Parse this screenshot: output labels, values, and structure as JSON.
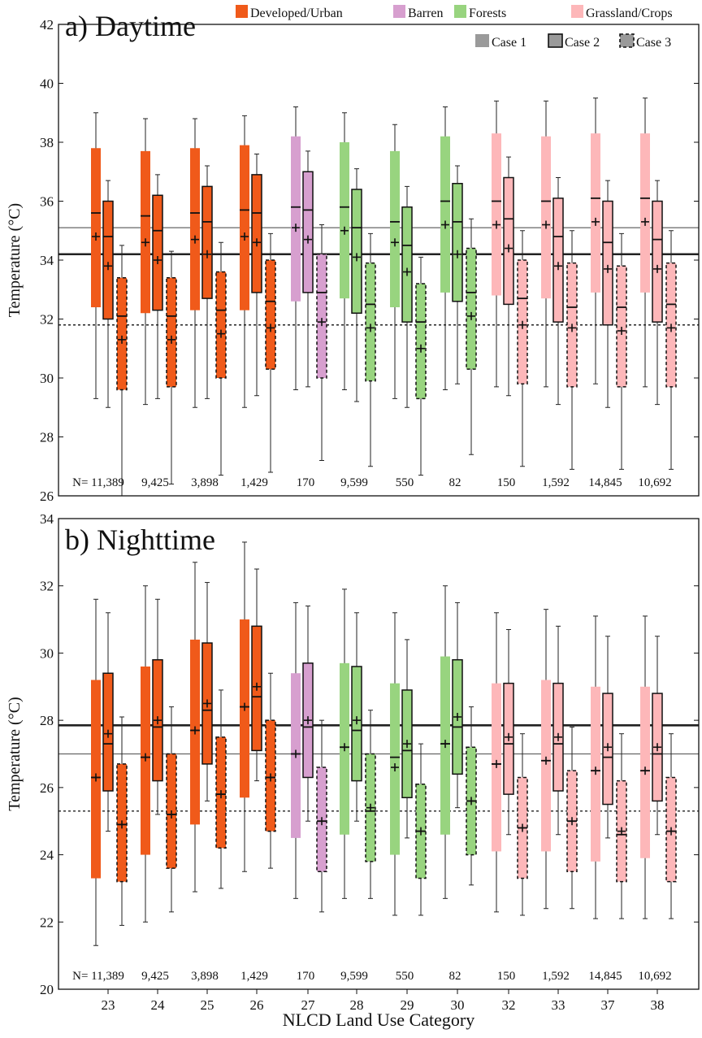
{
  "legend": {
    "categories": [
      {
        "label": "Developed/Urban",
        "color": "#f05a1a"
      },
      {
        "label": "Barren",
        "color": "#d79fcf"
      },
      {
        "label": "Forests",
        "color": "#98d47f"
      },
      {
        "label": "Grassland/Crops",
        "color": "#fdb7b9"
      }
    ],
    "cases": [
      {
        "label": "Case 1",
        "style": "filled-no-border"
      },
      {
        "label": "Case 2",
        "style": "solid-border"
      },
      {
        "label": "Case 3",
        "style": "dashed-border"
      }
    ]
  },
  "x_title": "NLCD Land Use Category",
  "chart_data": [
    {
      "type": "box",
      "title": "a) Daytime",
      "xlabel": "NLCD Land Use Category",
      "ylabel": "Temperature (°C)",
      "ylim": [
        26,
        42
      ],
      "yticks": [
        "26",
        "28",
        "30",
        "32",
        "34",
        "36",
        "38",
        "40",
        "42"
      ],
      "n_prefix": "N=",
      "groups": [
        {
          "category": "23",
          "class": "Developed/Urban",
          "n": "11,389",
          "case1": {
            "whisker_low": 29.3,
            "q1": 32.4,
            "median": 35.6,
            "q3": 37.8,
            "whisker_high": 39.0,
            "mean": 34.8
          },
          "case2": {
            "whisker_low": 29.0,
            "q1": 32.0,
            "median": 34.8,
            "q3": 36.0,
            "whisker_high": 36.7,
            "mean": 33.8
          },
          "case3": {
            "whisker_low": 26.0,
            "q1": 29.6,
            "median": 32.1,
            "q3": 33.4,
            "whisker_high": 34.5,
            "mean": 31.3
          }
        },
        {
          "category": "24",
          "class": "Developed/Urban",
          "n": "9,425",
          "case1": {
            "whisker_low": 29.1,
            "q1": 32.2,
            "median": 35.5,
            "q3": 37.7,
            "whisker_high": 38.8,
            "mean": 34.6
          },
          "case2": {
            "whisker_low": 29.3,
            "q1": 32.3,
            "median": 35.0,
            "q3": 36.2,
            "whisker_high": 36.9,
            "mean": 34.0
          },
          "case3": {
            "whisker_low": 26.4,
            "q1": 29.7,
            "median": 32.1,
            "q3": 33.4,
            "whisker_high": 34.3,
            "mean": 31.3
          }
        },
        {
          "category": "25",
          "class": "Developed/Urban",
          "n": "3,898",
          "case1": {
            "whisker_low": 29.0,
            "q1": 32.3,
            "median": 35.6,
            "q3": 37.8,
            "whisker_high": 38.8,
            "mean": 34.7
          },
          "case2": {
            "whisker_low": 29.3,
            "q1": 32.7,
            "median": 35.3,
            "q3": 36.5,
            "whisker_high": 37.2,
            "mean": 34.2
          },
          "case3": {
            "whisker_low": 26.7,
            "q1": 30.0,
            "median": 32.3,
            "q3": 33.6,
            "whisker_high": 34.6,
            "mean": 31.5
          }
        },
        {
          "category": "26",
          "class": "Developed/Urban",
          "n": "1,429",
          "case1": {
            "whisker_low": 29.0,
            "q1": 32.3,
            "median": 35.7,
            "q3": 37.9,
            "whisker_high": 38.9,
            "mean": 34.8
          },
          "case2": {
            "whisker_low": 29.4,
            "q1": 32.9,
            "median": 35.6,
            "q3": 36.9,
            "whisker_high": 37.6,
            "mean": 34.6
          },
          "case3": {
            "whisker_low": 26.8,
            "q1": 30.3,
            "median": 32.6,
            "q3": 34.0,
            "whisker_high": 34.9,
            "mean": 31.7
          }
        },
        {
          "category": "27",
          "class": "Barren",
          "n": "170",
          "case1": {
            "whisker_low": 29.6,
            "q1": 32.6,
            "median": 35.8,
            "q3": 38.2,
            "whisker_high": 39.2,
            "mean": 35.1
          },
          "case2": {
            "whisker_low": 29.7,
            "q1": 32.9,
            "median": 35.7,
            "q3": 37.0,
            "whisker_high": 37.7,
            "mean": 34.7
          },
          "case3": {
            "whisker_low": 27.2,
            "q1": 30.0,
            "median": 32.9,
            "q3": 34.2,
            "whisker_high": 35.2,
            "mean": 31.9
          }
        },
        {
          "category": "28",
          "class": "Forests",
          "n": "9,599",
          "case1": {
            "whisker_low": 29.6,
            "q1": 32.7,
            "median": 35.8,
            "q3": 38.0,
            "whisker_high": 39.0,
            "mean": 35.0
          },
          "case2": {
            "whisker_low": 29.2,
            "q1": 32.2,
            "median": 35.1,
            "q3": 36.4,
            "whisker_high": 37.1,
            "mean": 34.1
          },
          "case3": {
            "whisker_low": 27.0,
            "q1": 29.9,
            "median": 32.5,
            "q3": 33.9,
            "whisker_high": 34.9,
            "mean": 31.7
          }
        },
        {
          "category": "29",
          "class": "Forests",
          "n": "550",
          "case1": {
            "whisker_low": 29.3,
            "q1": 32.4,
            "median": 35.3,
            "q3": 37.7,
            "whisker_high": 38.6,
            "mean": 34.6
          },
          "case2": {
            "whisker_low": 29.0,
            "q1": 31.9,
            "median": 34.5,
            "q3": 35.8,
            "whisker_high": 36.5,
            "mean": 33.6
          },
          "case3": {
            "whisker_low": 26.7,
            "q1": 29.3,
            "median": 31.9,
            "q3": 33.2,
            "whisker_high": 34.1,
            "mean": 31.0
          }
        },
        {
          "category": "30",
          "class": "Forests",
          "n": "82",
          "case1": {
            "whisker_low": 29.6,
            "q1": 32.9,
            "median": 36.0,
            "q3": 38.2,
            "whisker_high": 39.2,
            "mean": 35.2
          },
          "case2": {
            "whisker_low": 29.8,
            "q1": 32.6,
            "median": 35.3,
            "q3": 36.6,
            "whisker_high": 37.2,
            "mean": 34.2
          },
          "case3": {
            "whisker_low": 27.4,
            "q1": 30.3,
            "median": 32.9,
            "q3": 34.4,
            "whisker_high": 35.4,
            "mean": 32.1
          }
        },
        {
          "category": "32",
          "class": "Grassland/Crops",
          "n": "150",
          "case1": {
            "whisker_low": 29.7,
            "q1": 32.8,
            "median": 36.0,
            "q3": 38.3,
            "whisker_high": 39.4,
            "mean": 35.2
          },
          "case2": {
            "whisker_low": 29.4,
            "q1": 32.5,
            "median": 35.4,
            "q3": 36.8,
            "whisker_high": 37.5,
            "mean": 34.4
          },
          "case3": {
            "whisker_low": 27.0,
            "q1": 29.8,
            "median": 32.7,
            "q3": 34.0,
            "whisker_high": 35.0,
            "mean": 31.8
          }
        },
        {
          "category": "33",
          "class": "Grassland/Crops",
          "n": "1,592",
          "case1": {
            "whisker_low": 29.7,
            "q1": 32.7,
            "median": 36.0,
            "q3": 38.2,
            "whisker_high": 39.4,
            "mean": 35.2
          },
          "case2": {
            "whisker_low": 29.1,
            "q1": 31.9,
            "median": 34.8,
            "q3": 36.1,
            "whisker_high": 36.8,
            "mean": 33.8
          },
          "case3": {
            "whisker_low": 26.9,
            "q1": 29.7,
            "median": 32.4,
            "q3": 33.9,
            "whisker_high": 35.0,
            "mean": 31.7
          }
        },
        {
          "category": "37",
          "class": "Grassland/Crops",
          "n": "14,845",
          "case1": {
            "whisker_low": 29.8,
            "q1": 32.9,
            "median": 36.1,
            "q3": 38.3,
            "whisker_high": 39.5,
            "mean": 35.3
          },
          "case2": {
            "whisker_low": 29.0,
            "q1": 31.8,
            "median": 34.6,
            "q3": 36.0,
            "whisker_high": 36.7,
            "mean": 33.7
          },
          "case3": {
            "whisker_low": 26.9,
            "q1": 29.7,
            "median": 32.4,
            "q3": 33.8,
            "whisker_high": 34.9,
            "mean": 31.6
          }
        },
        {
          "category": "38",
          "class": "Grassland/Crops",
          "n": "10,692",
          "case1": {
            "whisker_low": 29.7,
            "q1": 32.9,
            "median": 36.1,
            "q3": 38.3,
            "whisker_high": 39.5,
            "mean": 35.3
          },
          "case2": {
            "whisker_low": 29.1,
            "q1": 31.9,
            "median": 34.7,
            "q3": 36.0,
            "whisker_high": 36.7,
            "mean": 33.7
          },
          "case3": {
            "whisker_low": 26.9,
            "q1": 29.7,
            "median": 32.5,
            "q3": 33.9,
            "whisker_high": 35.0,
            "mean": 31.7
          }
        }
      ],
      "reference_lines": [
        {
          "case": "Case 1",
          "value": 35.1,
          "style": "thin-gray"
        },
        {
          "case": "Case 2",
          "value": 34.2,
          "style": "thick-solid"
        },
        {
          "case": "Case 3",
          "value": 31.8,
          "style": "dotted"
        }
      ]
    },
    {
      "type": "box",
      "title": "b) Nighttime",
      "xlabel": "NLCD Land Use Category",
      "ylabel": "Temperature (°C)",
      "ylim": [
        20,
        34
      ],
      "yticks": [
        "20",
        "22",
        "24",
        "26",
        "28",
        "30",
        "32",
        "34"
      ],
      "n_prefix": "N=",
      "groups": [
        {
          "category": "23",
          "class": "Developed/Urban",
          "n": "11,389",
          "case1": {
            "whisker_low": 21.3,
            "q1": 23.3,
            "median": 26.3,
            "q3": 29.2,
            "whisker_high": 31.6,
            "mean": 26.3
          },
          "case2": {
            "whisker_low": 24.7,
            "q1": 25.9,
            "median": 27.3,
            "q3": 29.4,
            "whisker_high": 31.2,
            "mean": 27.6
          },
          "case3": {
            "whisker_low": 21.9,
            "q1": 23.2,
            "median": 24.9,
            "q3": 26.7,
            "whisker_high": 28.1,
            "mean": 24.9
          }
        },
        {
          "category": "24",
          "class": "Developed/Urban",
          "n": "9,425",
          "case1": {
            "whisker_low": 22.0,
            "q1": 24.0,
            "median": 26.9,
            "q3": 29.6,
            "whisker_high": 32.0,
            "mean": 26.9
          },
          "case2": {
            "whisker_low": 25.2,
            "q1": 26.2,
            "median": 27.8,
            "q3": 29.8,
            "whisker_high": 31.6,
            "mean": 28.0
          },
          "case3": {
            "whisker_low": 22.3,
            "q1": 23.6,
            "median": 25.2,
            "q3": 27.0,
            "whisker_high": 28.4,
            "mean": 25.2
          }
        },
        {
          "category": "25",
          "class": "Developed/Urban",
          "n": "3,898",
          "case1": {
            "whisker_low": 22.9,
            "q1": 24.9,
            "median": 27.7,
            "q3": 30.4,
            "whisker_high": 32.7,
            "mean": 27.7
          },
          "case2": {
            "whisker_low": 25.6,
            "q1": 26.7,
            "median": 28.3,
            "q3": 30.3,
            "whisker_high": 32.1,
            "mean": 28.5
          },
          "case3": {
            "whisker_low": 23.0,
            "q1": 24.2,
            "median": 25.8,
            "q3": 27.5,
            "whisker_high": 28.9,
            "mean": 25.8
          }
        },
        {
          "category": "26",
          "class": "Developed/Urban",
          "n": "1,429",
          "case1": {
            "whisker_low": 23.5,
            "q1": 25.7,
            "median": 28.4,
            "q3": 31.0,
            "whisker_high": 33.3,
            "mean": 28.4
          },
          "case2": {
            "whisker_low": 26.2,
            "q1": 27.1,
            "median": 28.7,
            "q3": 30.8,
            "whisker_high": 32.5,
            "mean": 29.0
          },
          "case3": {
            "whisker_low": 23.6,
            "q1": 24.7,
            "median": 26.3,
            "q3": 28.0,
            "whisker_high": 29.4,
            "mean": 26.3
          }
        },
        {
          "category": "27",
          "class": "Barren",
          "n": "170",
          "case1": {
            "whisker_low": 22.7,
            "q1": 24.5,
            "median": 27.0,
            "q3": 29.4,
            "whisker_high": 31.5,
            "mean": 27.0
          },
          "case2": {
            "whisker_low": 25.0,
            "q1": 26.3,
            "median": 27.8,
            "q3": 29.7,
            "whisker_high": 31.4,
            "mean": 28.0
          },
          "case3": {
            "whisker_low": 22.3,
            "q1": 23.5,
            "median": 25.0,
            "q3": 26.6,
            "whisker_high": 28.0,
            "mean": 25.0
          }
        },
        {
          "category": "28",
          "class": "Forests",
          "n": "9,599",
          "case1": {
            "whisker_low": 22.7,
            "q1": 24.6,
            "median": 27.2,
            "q3": 29.7,
            "whisker_high": 31.9,
            "mean": 27.2
          },
          "case2": {
            "whisker_low": 25.0,
            "q1": 26.2,
            "median": 27.7,
            "q3": 29.6,
            "whisker_high": 31.2,
            "mean": 28.0
          },
          "case3": {
            "whisker_low": 22.7,
            "q1": 23.8,
            "median": 25.3,
            "q3": 27.0,
            "whisker_high": 28.3,
            "mean": 25.4
          }
        },
        {
          "category": "29",
          "class": "Forests",
          "n": "550",
          "case1": {
            "whisker_low": 22.2,
            "q1": 24.0,
            "median": 26.9,
            "q3": 29.1,
            "whisker_high": 31.2,
            "mean": 26.6
          },
          "case2": {
            "whisker_low": 24.5,
            "q1": 25.7,
            "median": 27.1,
            "q3": 28.9,
            "whisker_high": 30.4,
            "mean": 27.3
          },
          "case3": {
            "whisker_low": 22.2,
            "q1": 23.3,
            "median": 24.7,
            "q3": 26.1,
            "whisker_high": 27.3,
            "mean": 24.7
          }
        },
        {
          "category": "30",
          "class": "Forests",
          "n": "82",
          "case1": {
            "whisker_low": 22.7,
            "q1": 24.6,
            "median": 27.3,
            "q3": 29.9,
            "whisker_high": 32.0,
            "mean": 27.3
          },
          "case2": {
            "whisker_low": 25.4,
            "q1": 26.4,
            "median": 27.8,
            "q3": 29.8,
            "whisker_high": 31.5,
            "mean": 28.1
          },
          "case3": {
            "whisker_low": 23.1,
            "q1": 24.0,
            "median": 25.6,
            "q3": 27.2,
            "whisker_high": 28.4,
            "mean": 25.6
          }
        },
        {
          "category": "32",
          "class": "Grassland/Crops",
          "n": "150",
          "case1": {
            "whisker_low": 22.3,
            "q1": 24.1,
            "median": 26.7,
            "q3": 29.1,
            "whisker_high": 31.2,
            "mean": 26.7
          },
          "case2": {
            "whisker_low": 24.6,
            "q1": 25.8,
            "median": 27.3,
            "q3": 29.1,
            "whisker_high": 30.7,
            "mean": 27.5
          },
          "case3": {
            "whisker_low": 22.2,
            "q1": 23.3,
            "median": 24.8,
            "q3": 26.3,
            "whisker_high": 27.6,
            "mean": 24.8
          }
        },
        {
          "category": "33",
          "class": "Grassland/Crops",
          "n": "1,592",
          "case1": {
            "whisker_low": 22.4,
            "q1": 24.1,
            "median": 26.8,
            "q3": 29.2,
            "whisker_high": 31.3,
            "mean": 26.8
          },
          "case2": {
            "whisker_low": 24.6,
            "q1": 25.9,
            "median": 27.3,
            "q3": 29.1,
            "whisker_high": 30.8,
            "mean": 27.5
          },
          "case3": {
            "whisker_low": 22.4,
            "q1": 23.5,
            "median": 25.0,
            "q3": 26.5,
            "whisker_high": 27.8,
            "mean": 25.0
          }
        },
        {
          "category": "37",
          "class": "Grassland/Crops",
          "n": "14,845",
          "case1": {
            "whisker_low": 22.1,
            "q1": 23.8,
            "median": 26.5,
            "q3": 29.0,
            "whisker_high": 31.1,
            "mean": 26.5
          },
          "case2": {
            "whisker_low": 24.5,
            "q1": 25.5,
            "median": 26.9,
            "q3": 28.8,
            "whisker_high": 30.5,
            "mean": 27.2
          },
          "case3": {
            "whisker_low": 22.1,
            "q1": 23.2,
            "median": 24.6,
            "q3": 26.2,
            "whisker_high": 27.6,
            "mean": 24.7
          }
        },
        {
          "category": "38",
          "class": "Grassland/Crops",
          "n": "10,692",
          "case1": {
            "whisker_low": 22.1,
            "q1": 23.9,
            "median": 26.5,
            "q3": 29.0,
            "whisker_high": 31.1,
            "mean": 26.5
          },
          "case2": {
            "whisker_low": 24.6,
            "q1": 25.6,
            "median": 27.0,
            "q3": 28.8,
            "whisker_high": 30.5,
            "mean": 27.2
          },
          "case3": {
            "whisker_low": 22.1,
            "q1": 23.2,
            "median": 24.7,
            "q3": 26.3,
            "whisker_high": 27.6,
            "mean": 24.7
          }
        }
      ],
      "reference_lines": [
        {
          "case": "Case 1",
          "value": 27.0,
          "style": "thin-gray"
        },
        {
          "case": "Case 2",
          "value": 27.85,
          "style": "thick-solid"
        },
        {
          "case": "Case 3",
          "value": 25.3,
          "style": "dotted"
        }
      ]
    }
  ]
}
